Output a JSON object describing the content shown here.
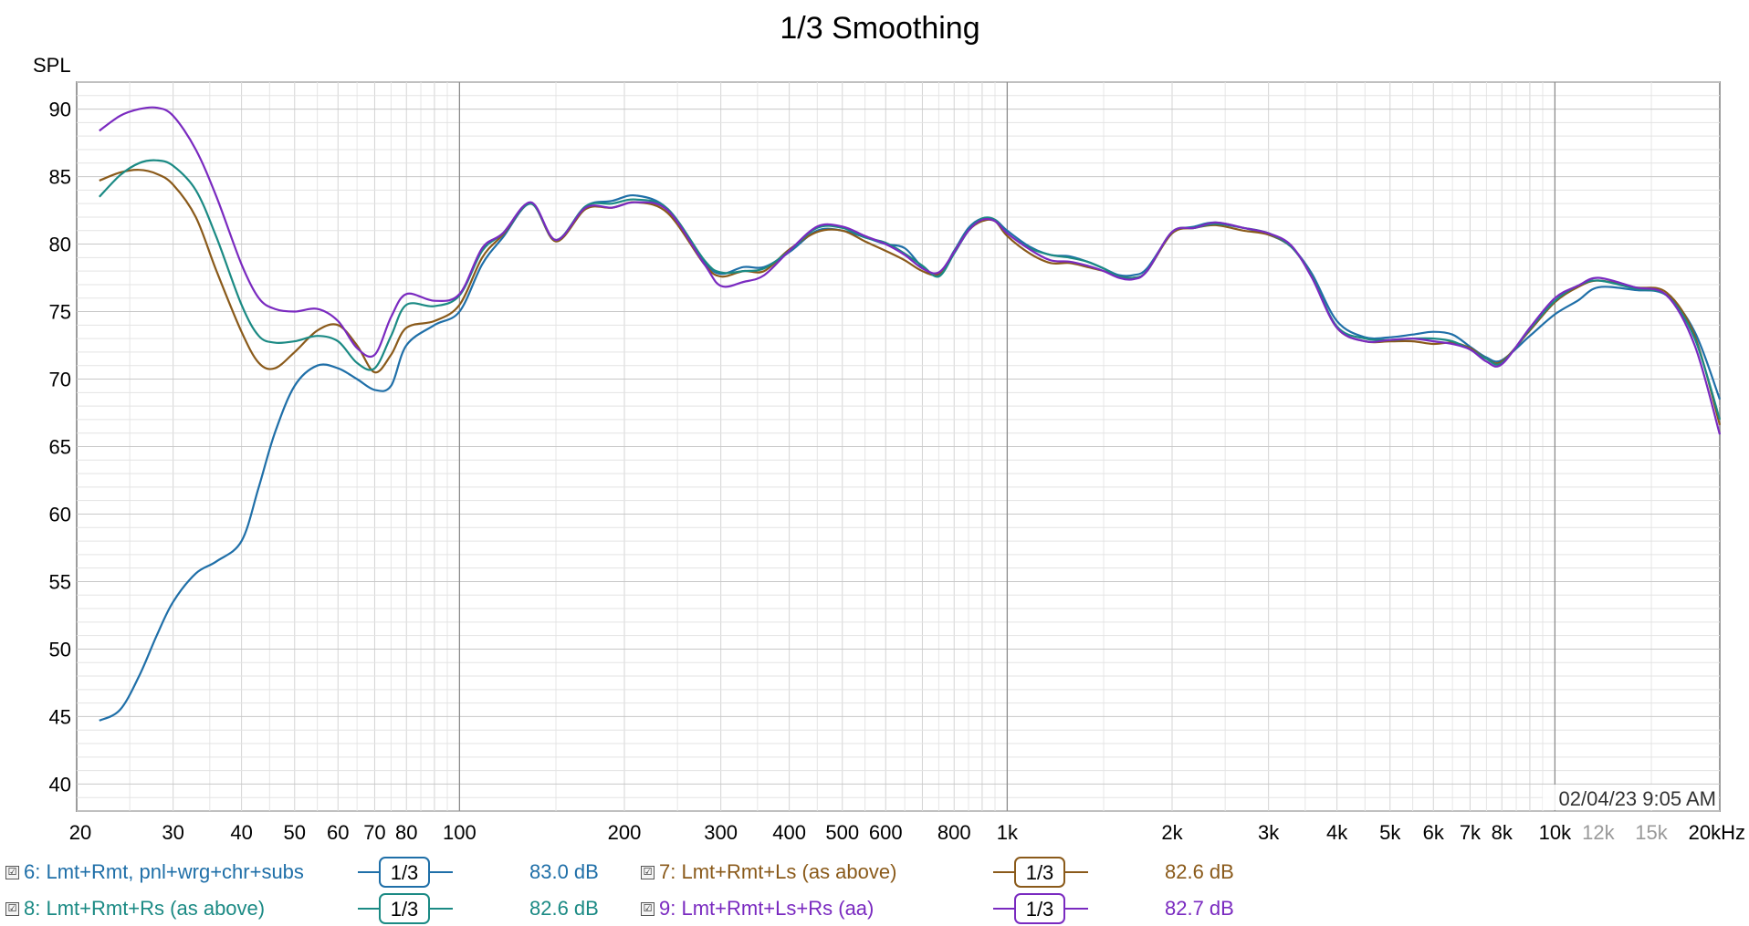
{
  "chart_data": {
    "type": "line",
    "title": "1/3 Smoothing",
    "ylabel": "SPL",
    "xlabel": "",
    "x_scale": "log",
    "xlim": [
      20,
      20000
    ],
    "ylim": [
      38,
      92
    ],
    "grid": true,
    "y_ticks": [
      "90",
      "85",
      "80",
      "75",
      "70",
      "65",
      "60",
      "55",
      "50",
      "45",
      "40"
    ],
    "y_tick_values": [
      90,
      85,
      80,
      75,
      70,
      65,
      60,
      55,
      50,
      45,
      40
    ],
    "x_ticks": [
      {
        "label": "20",
        "value": 20,
        "dim": false
      },
      {
        "label": "30",
        "value": 30,
        "dim": false
      },
      {
        "label": "40",
        "value": 40,
        "dim": false
      },
      {
        "label": "50",
        "value": 50,
        "dim": false
      },
      {
        "label": "60",
        "value": 60,
        "dim": false
      },
      {
        "label": "70",
        "value": 70,
        "dim": false
      },
      {
        "label": "80",
        "value": 80,
        "dim": false
      },
      {
        "label": "100",
        "value": 100,
        "dim": false
      },
      {
        "label": "200",
        "value": 200,
        "dim": false
      },
      {
        "label": "300",
        "value": 300,
        "dim": false
      },
      {
        "label": "400",
        "value": 400,
        "dim": false
      },
      {
        "label": "500",
        "value": 500,
        "dim": false
      },
      {
        "label": "600",
        "value": 600,
        "dim": false
      },
      {
        "label": "800",
        "value": 800,
        "dim": false
      },
      {
        "label": "1k",
        "value": 1000,
        "dim": false
      },
      {
        "label": "2k",
        "value": 2000,
        "dim": false
      },
      {
        "label": "3k",
        "value": 3000,
        "dim": false
      },
      {
        "label": "4k",
        "value": 4000,
        "dim": false
      },
      {
        "label": "5k",
        "value": 5000,
        "dim": false
      },
      {
        "label": "6k",
        "value": 6000,
        "dim": false
      },
      {
        "label": "7k",
        "value": 7000,
        "dim": false
      },
      {
        "label": "8k",
        "value": 8000,
        "dim": false
      },
      {
        "label": "10k",
        "value": 10000,
        "dim": false
      },
      {
        "label": "12k",
        "value": 12000,
        "dim": true
      },
      {
        "label": "15k",
        "value": 15000,
        "dim": true
      },
      {
        "label": "20kHz",
        "value": 20000,
        "dim": false
      }
    ],
    "timestamp": "02/04/23 9:05 AM",
    "series": [
      {
        "name": "6: Lmt+Rmt, pnl+wrg+chr+subs",
        "color": "#1f6fa8",
        "level": "83.0 dB",
        "smoothing": "1/3",
        "x": [
          22,
          24,
          26,
          28,
          30,
          33,
          36,
          40,
          43,
          46,
          50,
          55,
          60,
          65,
          70,
          75,
          80,
          90,
          100,
          110,
          120,
          135,
          150,
          170,
          190,
          210,
          240,
          280,
          300,
          330,
          360,
          400,
          450,
          500,
          550,
          600,
          650,
          700,
          750,
          800,
          850,
          900,
          950,
          1000,
          1100,
          1200,
          1300,
          1400,
          1500,
          1600,
          1700,
          1800,
          2000,
          2200,
          2400,
          2700,
          3000,
          3300,
          3600,
          4000,
          4500,
          5000,
          5500,
          6000,
          6500,
          7000,
          7500,
          8000,
          9000,
          10000,
          11000,
          12000,
          14000,
          16000,
          18000,
          20000
        ],
        "y": [
          44.7,
          45.5,
          48,
          51,
          53.5,
          55.6,
          56.5,
          58,
          62,
          66,
          69.5,
          71,
          70.8,
          70,
          69.2,
          69.5,
          72.5,
          74,
          75,
          78.5,
          80.5,
          83,
          80.3,
          82.8,
          83.2,
          83.6,
          82.6,
          78.7,
          77.8,
          78.3,
          78.3,
          79.4,
          81,
          81,
          80.5,
          80,
          79.7,
          78.3,
          77.7,
          79.5,
          81.2,
          81.9,
          81.8,
          81,
          79.8,
          79.2,
          79.1,
          78.7,
          78.2,
          77.7,
          77.7,
          78.2,
          80.8,
          81.3,
          81.6,
          81.2,
          80.7,
          79.8,
          77.8,
          74.3,
          73.1,
          73.1,
          73.3,
          73.5,
          73.3,
          72.4,
          71.6,
          71.4,
          73.2,
          74.8,
          75.8,
          76.8,
          76.6,
          76.2,
          73.5,
          68.5
        ]
      },
      {
        "name": "7: Lmt+Rmt+Ls (as above)",
        "color": "#8a5a1a",
        "level": "82.6 dB",
        "smoothing": "1/3",
        "x": [
          22,
          24,
          26,
          28,
          30,
          33,
          36,
          40,
          43,
          46,
          50,
          55,
          60,
          65,
          70,
          75,
          80,
          90,
          100,
          110,
          120,
          135,
          150,
          170,
          190,
          210,
          240,
          280,
          300,
          330,
          360,
          400,
          450,
          500,
          550,
          600,
          650,
          700,
          750,
          800,
          850,
          900,
          950,
          1000,
          1100,
          1200,
          1300,
          1400,
          1500,
          1600,
          1700,
          1800,
          2000,
          2200,
          2400,
          2700,
          3000,
          3300,
          3600,
          4000,
          4500,
          5000,
          5500,
          6000,
          6500,
          7000,
          7500,
          8000,
          9000,
          10000,
          11000,
          12000,
          14000,
          16000,
          18000,
          20000
        ],
        "y": [
          84.7,
          85.3,
          85.5,
          85.2,
          84.4,
          82,
          78,
          73.5,
          71.2,
          70.8,
          72,
          73.6,
          74,
          72.5,
          70.5,
          71.8,
          73.8,
          74.3,
          75.5,
          79,
          80.7,
          83,
          80.2,
          82.6,
          82.7,
          83.1,
          82.3,
          78.5,
          77.6,
          78,
          78,
          79.6,
          80.9,
          81,
          80.2,
          79.5,
          78.8,
          78,
          77.8,
          79.4,
          81,
          81.7,
          81.7,
          80.6,
          79.3,
          78.6,
          78.6,
          78.3,
          78,
          77.6,
          77.5,
          78,
          80.8,
          81.2,
          81.4,
          81,
          80.7,
          79.8,
          77.6,
          73.8,
          72.8,
          72.8,
          72.8,
          72.6,
          72.7,
          72.3,
          71.5,
          71.3,
          73.6,
          75.7,
          76.8,
          77.3,
          76.8,
          76.4,
          73.2,
          66.6
        ]
      },
      {
        "name": "8: Lmt+Rmt+Rs (as above)",
        "color": "#1b8a84",
        "level": "82.6 dB",
        "smoothing": "1/3",
        "x": [
          22,
          24,
          26,
          28,
          30,
          33,
          36,
          40,
          43,
          46,
          50,
          55,
          60,
          65,
          70,
          75,
          80,
          90,
          100,
          110,
          120,
          135,
          150,
          170,
          190,
          210,
          240,
          280,
          300,
          330,
          360,
          400,
          450,
          500,
          550,
          600,
          650,
          700,
          750,
          800,
          850,
          900,
          950,
          1000,
          1100,
          1200,
          1300,
          1400,
          1500,
          1600,
          1700,
          1800,
          2000,
          2200,
          2400,
          2700,
          3000,
          3300,
          3600,
          4000,
          4500,
          5000,
          5500,
          6000,
          6500,
          7000,
          7500,
          8000,
          9000,
          10000,
          11000,
          12000,
          14000,
          16000,
          18000,
          20000
        ],
        "y": [
          83.5,
          85.1,
          86,
          86.2,
          85.8,
          84,
          80.5,
          75.5,
          73.2,
          72.7,
          72.8,
          73.2,
          72.8,
          71.2,
          70.8,
          73.2,
          75.5,
          75.4,
          76.2,
          79.5,
          80.8,
          83,
          80.3,
          82.8,
          83,
          83.3,
          82.6,
          78.8,
          77.9,
          78,
          78.2,
          79.5,
          81.2,
          81.2,
          80.5,
          80.1,
          79.3,
          78.4,
          77.6,
          79.3,
          81,
          81.9,
          81.8,
          80.8,
          79.7,
          79.2,
          79,
          78.7,
          78.2,
          77.6,
          77.5,
          78,
          80.9,
          81.2,
          81.5,
          81.2,
          80.8,
          79.8,
          77.6,
          73.9,
          73,
          72.9,
          73,
          73,
          72.8,
          72.2,
          71.5,
          71.2,
          73.7,
          75.8,
          76.9,
          77.3,
          76.7,
          76.2,
          73,
          67
        ]
      },
      {
        "name": "9: Lmt+Rmt+Ls+Rs (aa)",
        "color": "#7a2ac0",
        "level": "82.7 dB",
        "smoothing": "1/3",
        "x": [
          22,
          24,
          26,
          28,
          30,
          33,
          36,
          40,
          43,
          46,
          50,
          55,
          60,
          65,
          70,
          75,
          80,
          90,
          100,
          110,
          120,
          135,
          150,
          170,
          190,
          210,
          240,
          280,
          300,
          330,
          360,
          400,
          450,
          500,
          550,
          600,
          650,
          700,
          750,
          800,
          850,
          900,
          950,
          1000,
          1100,
          1200,
          1300,
          1400,
          1500,
          1600,
          1700,
          1800,
          2000,
          2200,
          2400,
          2700,
          3000,
          3300,
          3600,
          4000,
          4500,
          5000,
          5500,
          6000,
          6500,
          7000,
          7500,
          8000,
          9000,
          10000,
          11000,
          12000,
          14000,
          16000,
          18000,
          20000
        ],
        "y": [
          88.4,
          89.5,
          90,
          90.1,
          89.5,
          87,
          83.5,
          78.5,
          76,
          75.2,
          75,
          75.2,
          74.3,
          72.3,
          71.8,
          74.6,
          76.3,
          75.8,
          76.3,
          79.7,
          80.8,
          83.1,
          80.3,
          82.7,
          82.7,
          83.1,
          82.5,
          78.5,
          76.9,
          77.2,
          77.7,
          79.5,
          81.3,
          81.3,
          80.6,
          80,
          79.2,
          78.2,
          77.9,
          79.4,
          81,
          81.8,
          81.7,
          80.8,
          79.6,
          78.8,
          78.7,
          78.4,
          78,
          77.5,
          77.4,
          78,
          80.9,
          81.2,
          81.6,
          81.2,
          80.8,
          79.9,
          77.5,
          73.8,
          72.8,
          72.9,
          73,
          72.8,
          72.6,
          72.2,
          71.3,
          71.1,
          73.8,
          76,
          76.9,
          77.5,
          76.8,
          76.2,
          72.5,
          65.9
        ]
      }
    ]
  },
  "legend": [
    {
      "checkbox": "☑",
      "label": "6: Lmt+Rmt, pnl+wrg+chr+subs",
      "smoothing": "1/3",
      "level": "83.0 dB",
      "color": "#1f6fa8"
    },
    {
      "checkbox": "☑",
      "label": "7: Lmt+Rmt+Ls (as above)",
      "smoothing": "1/3",
      "level": "82.6 dB",
      "color": "#8a5a1a"
    },
    {
      "checkbox": "☑",
      "label": "8: Lmt+Rmt+Rs (as above)",
      "smoothing": "1/3",
      "level": "82.6 dB",
      "color": "#1b8a84"
    },
    {
      "checkbox": "☑",
      "label": "9: Lmt+Rmt+Ls+Rs (aa)",
      "smoothing": "1/3",
      "level": "82.7 dB",
      "color": "#7a2ac0"
    }
  ]
}
